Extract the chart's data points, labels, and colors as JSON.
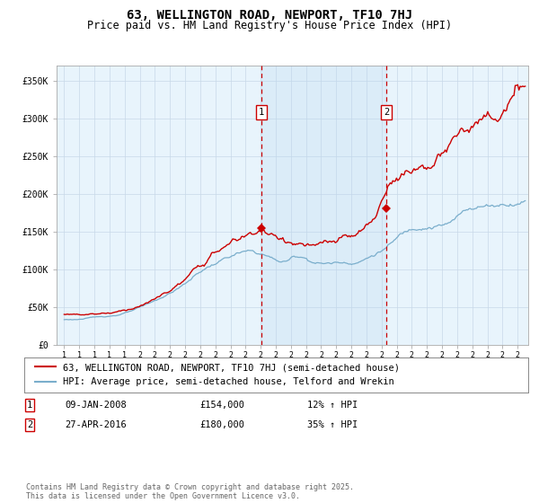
{
  "title": "63, WELLINGTON ROAD, NEWPORT, TF10 7HJ",
  "subtitle": "Price paid vs. HM Land Registry's House Price Index (HPI)",
  "background_color": "#ffffff",
  "plot_bg_color": "#e8f4fc",
  "ylabel_ticks": [
    "£0",
    "£50K",
    "£100K",
    "£150K",
    "£200K",
    "£250K",
    "£300K",
    "£350K"
  ],
  "ytick_values": [
    0,
    50000,
    100000,
    150000,
    200000,
    250000,
    300000,
    350000
  ],
  "ylim": [
    0,
    370000
  ],
  "xlim_start": 1994.5,
  "xlim_end": 2025.7,
  "red_line_color": "#cc0000",
  "blue_line_color": "#7aaecc",
  "vline_color": "#cc0000",
  "vline_style": "--",
  "marker1_x": 2008.04,
  "marker1_y": 154000,
  "marker2_x": 2016.33,
  "marker2_y": 180000,
  "shade_x_start": 2008.04,
  "shade_x_end": 2016.33,
  "legend_line1": "63, WELLINGTON ROAD, NEWPORT, TF10 7HJ (semi-detached house)",
  "legend_line2": "HPI: Average price, semi-detached house, Telford and Wrekin",
  "table_row1": [
    "1",
    "09-JAN-2008",
    "£154,000",
    "12% ↑ HPI"
  ],
  "table_row2": [
    "2",
    "27-APR-2016",
    "£180,000",
    "35% ↑ HPI"
  ],
  "footnote": "Contains HM Land Registry data © Crown copyright and database right 2025.\nThis data is licensed under the Open Government Licence v3.0.",
  "title_fontsize": 10,
  "subtitle_fontsize": 8.5,
  "tick_fontsize": 7,
  "legend_fontsize": 7.5,
  "table_fontsize": 7.5,
  "footnote_fontsize": 6
}
